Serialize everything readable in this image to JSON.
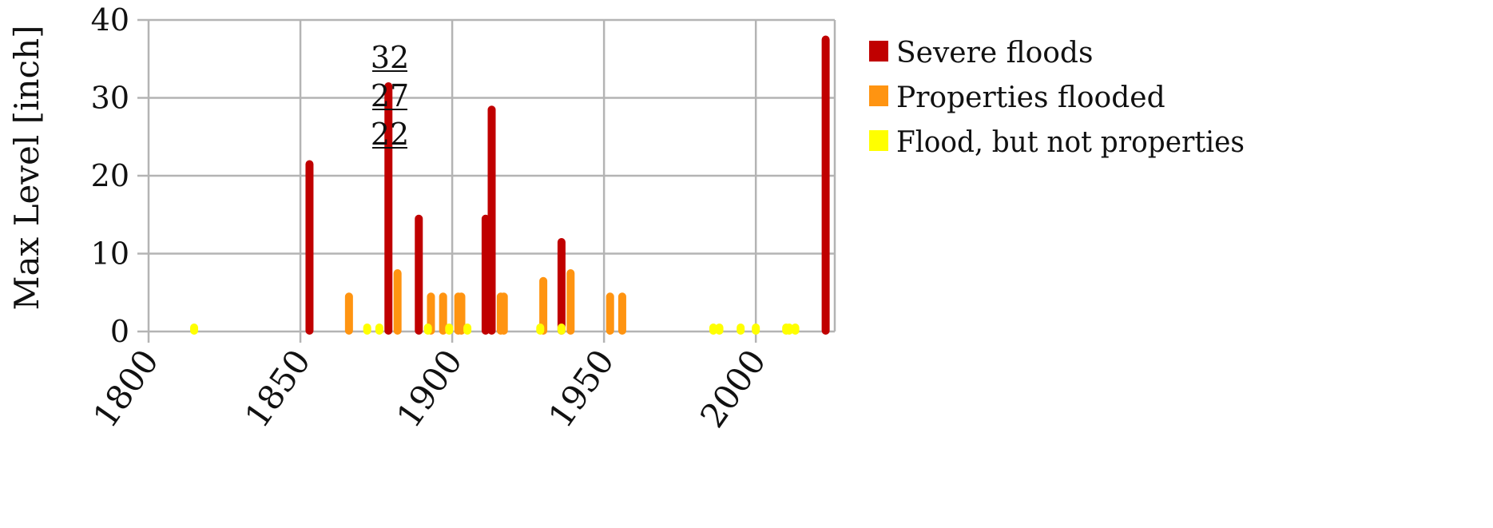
{
  "chart_data": {
    "type": "bar",
    "title": "",
    "xlabel": "",
    "ylabel": "Max Level [inch]",
    "xlim": [
      1800,
      2026
    ],
    "ylim": [
      0,
      40
    ],
    "x_ticks": [
      "1800",
      "1850",
      "1900",
      "1950",
      "2000"
    ],
    "y_ticks": [
      "0",
      "10",
      "20",
      "30",
      "40"
    ],
    "grid": true,
    "legend_position": "right",
    "series": [
      {
        "name": "Severe floods",
        "color": "#c00000",
        "points": [
          {
            "x": 1853,
            "y": 22
          },
          {
            "x": 1879,
            "y": 32
          },
          {
            "x": 1889,
            "y": 15
          },
          {
            "x": 1911,
            "y": 15
          },
          {
            "x": 1913,
            "y": 29
          },
          {
            "x": 1936,
            "y": 12
          },
          {
            "x": 2023,
            "y": 38
          }
        ]
      },
      {
        "name": "Properties flooded",
        "color": "#ff9411",
        "points": [
          {
            "x": 1866,
            "y": 5
          },
          {
            "x": 1882,
            "y": 8
          },
          {
            "x": 1893,
            "y": 5
          },
          {
            "x": 1897,
            "y": 5
          },
          {
            "x": 1902,
            "y": 5
          },
          {
            "x": 1903,
            "y": 5
          },
          {
            "x": 1916,
            "y": 5
          },
          {
            "x": 1917,
            "y": 5
          },
          {
            "x": 1930,
            "y": 7
          },
          {
            "x": 1939,
            "y": 8
          },
          {
            "x": 1952,
            "y": 5
          },
          {
            "x": 1956,
            "y": 5
          }
        ]
      },
      {
        "name": "Flood, but not properties",
        "color": "#ffff00",
        "points": [
          {
            "x": 1815,
            "y": 1
          },
          {
            "x": 1872,
            "y": 1
          },
          {
            "x": 1876,
            "y": 1
          },
          {
            "x": 1892,
            "y": 1
          },
          {
            "x": 1899,
            "y": 1
          },
          {
            "x": 1905,
            "y": 1
          },
          {
            "x": 1929,
            "y": 1
          },
          {
            "x": 1936,
            "y": 1
          },
          {
            "x": 1986,
            "y": 1
          },
          {
            "x": 1988,
            "y": 1
          },
          {
            "x": 1995,
            "y": 1
          },
          {
            "x": 2000,
            "y": 1
          },
          {
            "x": 2010,
            "y": 1
          },
          {
            "x": 2011,
            "y": 1
          },
          {
            "x": 2013,
            "y": 1
          }
        ]
      }
    ],
    "annotations": [
      "32",
      "27",
      "22"
    ]
  }
}
